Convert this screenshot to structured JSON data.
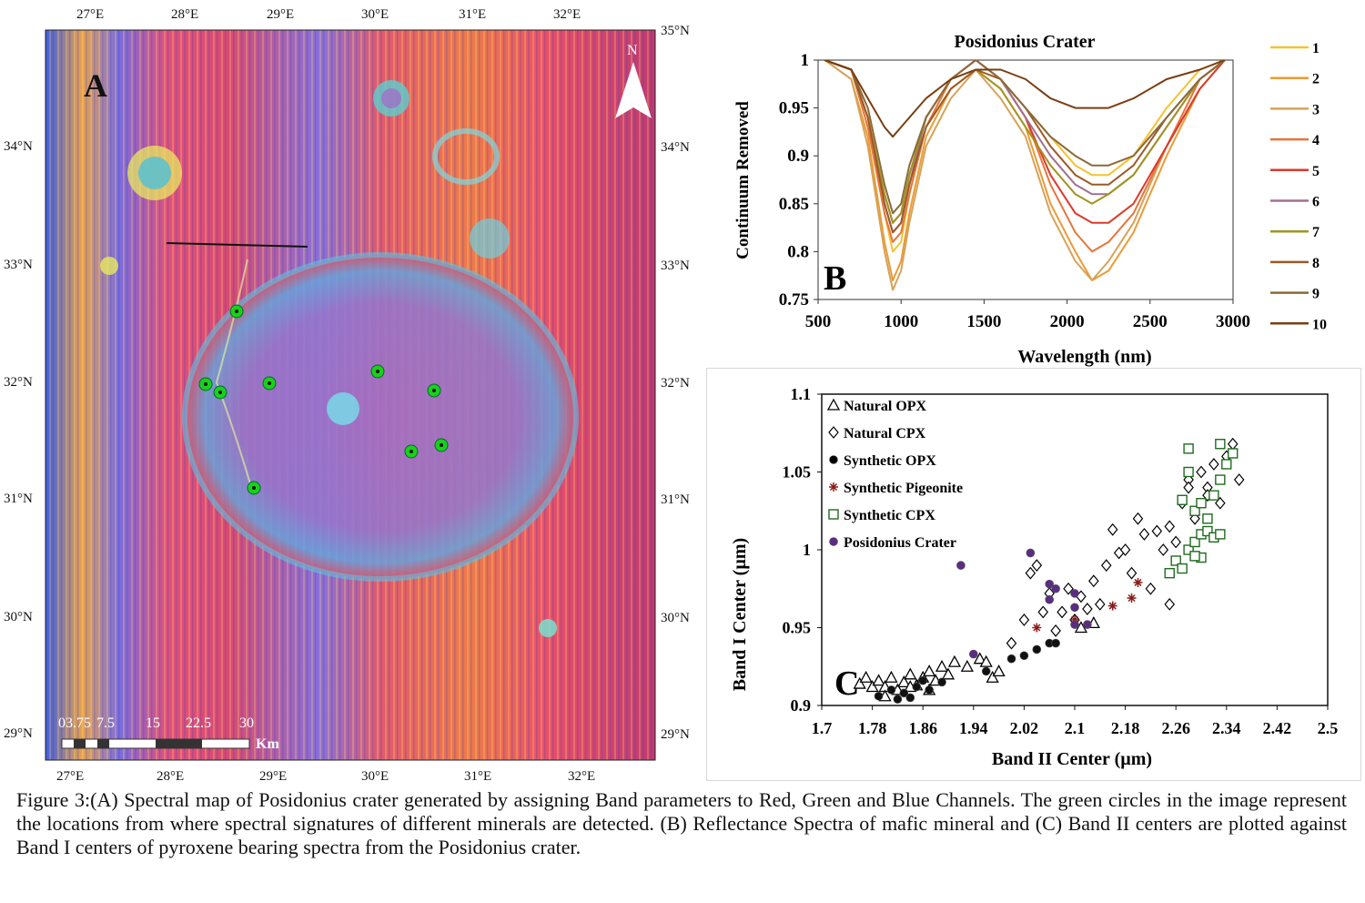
{
  "caption": "Figure 3:(A) Spectral map of Posidonius crater generated by assigning Band parameters to Red, Green and Blue Channels. The green circles in the image represent the locations from where spectral signatures of different minerals are detected. (B) Reflectance Spectra of mafic mineral and (C) Band II centers are plotted against Band I centers of pyroxene bearing spectra from the Posidonius crater.",
  "panel_a": {
    "label": "A",
    "north_label": "N",
    "lon_top": [
      "27°E",
      "28°E",
      "29°E",
      "30°E",
      "31°E",
      "32°E"
    ],
    "lon_bottom": [
      "27°E",
      "28°E",
      "29°E",
      "30°E",
      "31°E",
      "32°E"
    ],
    "lat_left": [
      "34°N",
      "33°N",
      "32°N",
      "31°N",
      "30°N",
      "29°N"
    ],
    "lat_right": [
      "35°N",
      "34°N",
      "33°N",
      "32°N",
      "31°N",
      "30°N",
      "29°N"
    ],
    "scale_labels": [
      "03.75",
      "7.5",
      "15",
      "22.5",
      "30"
    ],
    "scale_unit": "Km",
    "colors": {
      "site_marker": "#19d119",
      "map_red": "#e0456a",
      "map_blue": "#4a6fe0"
    }
  },
  "chart_data": [
    {
      "type": "line",
      "panel": "B",
      "title": "Posidonius Crater",
      "xlabel": "Wavelength (nm)",
      "ylabel": "Continuum Removed",
      "xlim": [
        500,
        3000
      ],
      "ylim": [
        0.75,
        1
      ],
      "xticks": [
        "500",
        "1000",
        "1500",
        "2000",
        "2500",
        "3000"
      ],
      "yticks": [
        "0.75",
        "0.8",
        "0.85",
        "0.9",
        "0.95",
        "1"
      ],
      "legend_position": "right",
      "series": [
        {
          "name": "1",
          "color": "#f5c230",
          "x": [
            540,
            700,
            800,
            900,
            950,
            1000,
            1050,
            1150,
            1300,
            1450,
            1600,
            1750,
            1900,
            2050,
            2150,
            2250,
            2400,
            2600,
            2800,
            2950
          ],
          "y": [
            1,
            0.99,
            0.93,
            0.84,
            0.8,
            0.81,
            0.86,
            0.93,
            0.97,
            0.99,
            0.98,
            0.95,
            0.92,
            0.89,
            0.88,
            0.88,
            0.9,
            0.95,
            0.99,
            1
          ]
        },
        {
          "name": "2",
          "color": "#eb9b35",
          "x": [
            540,
            700,
            800,
            900,
            950,
            1000,
            1050,
            1150,
            1300,
            1450,
            1600,
            1750,
            1900,
            2050,
            2150,
            2250,
            2400,
            2600,
            2800,
            2950
          ],
          "y": [
            1,
            0.98,
            0.92,
            0.81,
            0.77,
            0.79,
            0.84,
            0.92,
            0.97,
            0.99,
            0.97,
            0.93,
            0.85,
            0.8,
            0.77,
            0.78,
            0.82,
            0.9,
            0.97,
            1
          ]
        },
        {
          "name": "3",
          "color": "#d6a25a",
          "x": [
            540,
            700,
            800,
            900,
            950,
            1000,
            1050,
            1150,
            1300,
            1450,
            1600,
            1750,
            1900,
            2050,
            2150,
            2250,
            2400,
            2600,
            2800,
            2950
          ],
          "y": [
            1,
            0.98,
            0.91,
            0.8,
            0.76,
            0.78,
            0.83,
            0.91,
            0.96,
            0.99,
            0.96,
            0.92,
            0.84,
            0.79,
            0.77,
            0.79,
            0.83,
            0.91,
            0.97,
            1
          ]
        },
        {
          "name": "4",
          "color": "#e8743a",
          "x": [
            540,
            700,
            800,
            900,
            950,
            1000,
            1050,
            1150,
            1300,
            1450,
            1600,
            1750,
            1900,
            2050,
            2150,
            2250,
            2400,
            2600,
            2800,
            2950
          ],
          "y": [
            1,
            0.99,
            0.93,
            0.84,
            0.81,
            0.82,
            0.86,
            0.93,
            0.98,
            1,
            0.98,
            0.94,
            0.87,
            0.82,
            0.8,
            0.81,
            0.84,
            0.91,
            0.98,
            1
          ]
        },
        {
          "name": "5",
          "color": "#dc3a2a",
          "x": [
            540,
            700,
            800,
            900,
            950,
            1000,
            1050,
            1150,
            1300,
            1450,
            1600,
            1750,
            1900,
            2050,
            2150,
            2250,
            2400,
            2600,
            2800,
            2950
          ],
          "y": [
            1,
            0.99,
            0.94,
            0.86,
            0.83,
            0.84,
            0.88,
            0.94,
            0.98,
            1,
            0.98,
            0.94,
            0.88,
            0.84,
            0.83,
            0.83,
            0.85,
            0.91,
            0.97,
            1
          ]
        },
        {
          "name": "6",
          "color": "#a07090",
          "x": [
            540,
            700,
            800,
            900,
            950,
            1000,
            1050,
            1150,
            1300,
            1450,
            1600,
            1750,
            1900,
            2050,
            2150,
            2250,
            2400,
            2600,
            2800,
            2950
          ],
          "y": [
            1,
            0.99,
            0.94,
            0.85,
            0.82,
            0.83,
            0.87,
            0.94,
            0.98,
            1,
            0.98,
            0.94,
            0.9,
            0.87,
            0.86,
            0.86,
            0.88,
            0.93,
            0.98,
            1
          ]
        },
        {
          "name": "7",
          "color": "#a09420",
          "x": [
            540,
            700,
            800,
            900,
            950,
            1000,
            1050,
            1150,
            1300,
            1450,
            1600,
            1750,
            1900,
            2050,
            2150,
            2250,
            2400,
            2600,
            2800,
            2950
          ],
          "y": [
            1,
            0.99,
            0.94,
            0.86,
            0.83,
            0.84,
            0.88,
            0.94,
            0.98,
            0.99,
            0.97,
            0.93,
            0.89,
            0.86,
            0.85,
            0.86,
            0.88,
            0.93,
            0.98,
            1
          ]
        },
        {
          "name": "8",
          "color": "#9a5a28",
          "x": [
            540,
            700,
            800,
            900,
            950,
            1000,
            1050,
            1150,
            1300,
            1450,
            1600,
            1750,
            1900,
            2050,
            2150,
            2250,
            2400,
            2600,
            2800,
            2950
          ],
          "y": [
            1,
            0.99,
            0.94,
            0.85,
            0.82,
            0.83,
            0.87,
            0.93,
            0.97,
            0.99,
            0.98,
            0.95,
            0.91,
            0.88,
            0.87,
            0.87,
            0.89,
            0.94,
            0.98,
            1
          ]
        },
        {
          "name": "9",
          "color": "#8a6a38",
          "x": [
            540,
            700,
            800,
            900,
            950,
            1000,
            1050,
            1150,
            1300,
            1450,
            1600,
            1750,
            1900,
            2050,
            2150,
            2250,
            2400,
            2600,
            2800,
            2950
          ],
          "y": [
            1,
            0.99,
            0.95,
            0.87,
            0.84,
            0.85,
            0.89,
            0.94,
            0.98,
            1,
            0.98,
            0.95,
            0.92,
            0.9,
            0.89,
            0.89,
            0.9,
            0.94,
            0.98,
            1
          ]
        },
        {
          "name": "10",
          "color": "#7a3e12",
          "x": [
            540,
            700,
            800,
            900,
            950,
            1000,
            1050,
            1150,
            1300,
            1450,
            1600,
            1750,
            1900,
            2050,
            2150,
            2250,
            2400,
            2600,
            2800,
            2950
          ],
          "y": [
            1,
            0.99,
            0.96,
            0.93,
            0.92,
            0.93,
            0.94,
            0.96,
            0.98,
            0.99,
            0.99,
            0.98,
            0.96,
            0.95,
            0.95,
            0.95,
            0.96,
            0.98,
            0.99,
            1
          ]
        }
      ]
    },
    {
      "type": "scatter",
      "panel": "C",
      "xlabel": "Band II Center (µm)",
      "ylabel": "Band I Center  (µm)",
      "xlim": [
        1.7,
        2.5
      ],
      "ylim": [
        0.9,
        1.1
      ],
      "xticks": [
        "1.7",
        "1.78",
        "1.86",
        "1.94",
        "2.02",
        "2.1",
        "2.18",
        "2.26",
        "2.34",
        "2.42",
        "2.5"
      ],
      "yticks": [
        "0.9",
        "0.95",
        "1",
        "1.05",
        "1.1"
      ],
      "legend_position": "top-left",
      "series": [
        {
          "name": "Natural OPX",
          "marker": "triangle",
          "color": "#000000",
          "points": [
            [
              1.76,
              0.914
            ],
            [
              1.77,
              0.918
            ],
            [
              1.78,
              0.912
            ],
            [
              1.79,
              0.916
            ],
            [
              1.8,
              0.912
            ],
            [
              1.81,
              0.918
            ],
            [
              1.82,
              0.91
            ],
            [
              1.83,
              0.915
            ],
            [
              1.84,
              0.92
            ],
            [
              1.85,
              0.913
            ],
            [
              1.86,
              0.918
            ],
            [
              1.87,
              0.922
            ],
            [
              1.88,
              0.916
            ],
            [
              1.89,
              0.925
            ],
            [
              1.9,
              0.92
            ],
            [
              1.91,
              0.928
            ],
            [
              1.93,
              0.925
            ],
            [
              1.95,
              0.93
            ],
            [
              1.96,
              0.928
            ],
            [
              1.97,
              0.918
            ],
            [
              1.98,
              0.922
            ],
            [
              2.11,
              0.95
            ],
            [
              2.13,
              0.953
            ],
            [
              1.8,
              0.906
            ],
            [
              1.84,
              0.912
            ],
            [
              1.87,
              0.91
            ]
          ]
        },
        {
          "name": "Natural CPX",
          "marker": "diamond",
          "color": "#000000",
          "points": [
            [
              2.0,
              0.94
            ],
            [
              2.02,
              0.955
            ],
            [
              2.03,
              0.985
            ],
            [
              2.04,
              0.99
            ],
            [
              2.05,
              0.96
            ],
            [
              2.06,
              0.972
            ],
            [
              2.07,
              0.948
            ],
            [
              2.08,
              0.96
            ],
            [
              2.09,
              0.975
            ],
            [
              2.1,
              0.955
            ],
            [
              2.11,
              0.97
            ],
            [
              2.12,
              0.962
            ],
            [
              2.13,
              0.98
            ],
            [
              2.14,
              0.965
            ],
            [
              2.15,
              0.99
            ],
            [
              2.16,
              1.013
            ],
            [
              2.17,
              0.998
            ],
            [
              2.18,
              1.0
            ],
            [
              2.19,
              0.985
            ],
            [
              2.2,
              1.02
            ],
            [
              2.21,
              1.01
            ],
            [
              2.22,
              0.975
            ],
            [
              2.23,
              1.012
            ],
            [
              2.24,
              1.0
            ],
            [
              2.25,
              1.015
            ],
            [
              2.26,
              1.005
            ],
            [
              2.27,
              1.03
            ],
            [
              2.28,
              1.045
            ],
            [
              2.29,
              1.02
            ],
            [
              2.3,
              1.05
            ],
            [
              2.31,
              1.04
            ],
            [
              2.32,
              1.055
            ],
            [
              2.33,
              1.03
            ],
            [
              2.34,
              1.06
            ],
            [
              2.35,
              1.068
            ],
            [
              2.36,
              1.045
            ],
            [
              2.25,
              0.965
            ],
            [
              2.31,
              1.035
            ],
            [
              2.28,
              1.04
            ]
          ]
        },
        {
          "name": "Synthetic OPX",
          "marker": "circle",
          "color": "#000000",
          "points": [
            [
              1.79,
              0.906
            ],
            [
              1.81,
              0.91
            ],
            [
              1.83,
              0.908
            ],
            [
              1.85,
              0.912
            ],
            [
              1.87,
              0.91
            ],
            [
              1.89,
              0.915
            ],
            [
              1.96,
              0.922
            ],
            [
              2.0,
              0.93
            ],
            [
              2.02,
              0.932
            ],
            [
              2.04,
              0.936
            ],
            [
              2.06,
              0.94
            ],
            [
              2.07,
              0.94
            ],
            [
              1.84,
              0.905
            ],
            [
              1.82,
              0.904
            ],
            [
              1.86,
              0.916
            ]
          ]
        },
        {
          "name": "Synthetic Pigeonite",
          "marker": "asterisk",
          "color": "#8b1a1a",
          "points": [
            [
              2.04,
              0.95
            ],
            [
              2.1,
              0.955
            ],
            [
              2.16,
              0.964
            ],
            [
              2.19,
              0.969
            ],
            [
              2.2,
              0.979
            ]
          ]
        },
        {
          "name": "Synthetic CPX",
          "marker": "square",
          "color": "#1f6b1f",
          "points": [
            [
              2.25,
              0.985
            ],
            [
              2.26,
              0.993
            ],
            [
              2.27,
              0.988
            ],
            [
              2.28,
              1.0
            ],
            [
              2.29,
              1.005
            ],
            [
              2.3,
              0.995
            ],
            [
              2.3,
              1.01
            ],
            [
              2.31,
              1.012
            ],
            [
              2.32,
              1.008
            ],
            [
              2.33,
              1.01
            ],
            [
              2.29,
              1.025
            ],
            [
              2.3,
              1.03
            ],
            [
              2.31,
              1.02
            ],
            [
              2.32,
              1.035
            ],
            [
              2.33,
              1.045
            ],
            [
              2.34,
              1.055
            ],
            [
              2.35,
              1.062
            ],
            [
              2.28,
              1.05
            ],
            [
              2.28,
              1.065
            ],
            [
              2.33,
              1.068
            ],
            [
              2.27,
              1.032
            ],
            [
              2.29,
              0.996
            ]
          ]
        },
        {
          "name": "Posidonius Crater",
          "marker": "circle",
          "color": "#5a2d82",
          "points": [
            [
              1.92,
              0.99
            ],
            [
              1.94,
              0.933
            ],
            [
              2.03,
              0.998
            ],
            [
              2.06,
              0.978
            ],
            [
              2.06,
              0.968
            ],
            [
              2.07,
              0.975
            ],
            [
              2.1,
              0.972
            ],
            [
              2.1,
              0.963
            ],
            [
              2.1,
              0.952
            ],
            [
              2.12,
              0.952
            ]
          ]
        }
      ]
    }
  ]
}
